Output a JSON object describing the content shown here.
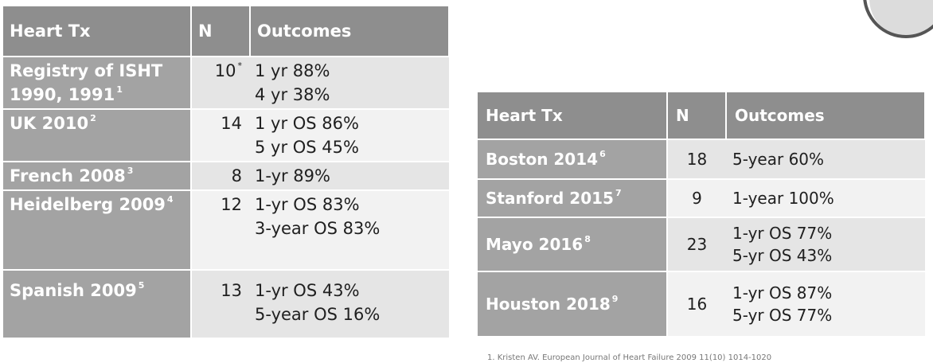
{
  "left_table": {
    "headers": [
      "Heart Tx",
      "N",
      "Outcomes"
    ],
    "rows": [
      {
        "label_lines": [
          "Registry of ISHT",
          "1990, 1991"
        ],
        "ref": "1",
        "n": "10",
        "n_mark": "*",
        "outcomes": [
          "1 yr 88%",
          "4 yr 38%"
        ]
      },
      {
        "label_lines": [
          "UK 2010"
        ],
        "ref": "2",
        "n": "14",
        "n_mark": "",
        "outcomes": [
          "1 yr OS 86%",
          "5 yr OS 45%"
        ]
      },
      {
        "label_lines": [
          "French 2008"
        ],
        "ref": "3",
        "n": "8",
        "n_mark": "",
        "outcomes": [
          "1-yr 89%"
        ]
      },
      {
        "label_lines": [
          "Heidelberg 2009"
        ],
        "ref": "4",
        "n": "12",
        "n_mark": "",
        "outcomes": [
          "1-yr OS 83%",
          "3-year OS 83%"
        ]
      },
      {
        "label_lines": [
          "Spanish 2009"
        ],
        "ref": "5",
        "n": "13",
        "n_mark": "",
        "outcomes": [
          "1-yr OS 43%",
          "5-year OS 16%"
        ]
      }
    ]
  },
  "right_table": {
    "headers": [
      "Heart Tx",
      "N",
      "Outcomes"
    ],
    "rows": [
      {
        "label": "Boston 2014",
        "ref": "6",
        "n": "18",
        "outcomes": [
          "5-year 60%"
        ]
      },
      {
        "label": "Stanford 2015",
        "ref": "7",
        "n": "9",
        "outcomes": [
          "1-year 100%"
        ]
      },
      {
        "label": "Mayo 2016",
        "ref": "8",
        "n": "23",
        "outcomes": [
          "1-yr OS 77%",
          "5-yr OS 43%"
        ]
      },
      {
        "label": "Houston 2018",
        "ref": "9",
        "n": "16",
        "outcomes": [
          "1-yr OS 87%",
          "5-yr OS 77%"
        ]
      }
    ]
  },
  "footnote": "1. Kristen AV. European Journal of Heart Failure 2009 11(10) 1014-1020"
}
